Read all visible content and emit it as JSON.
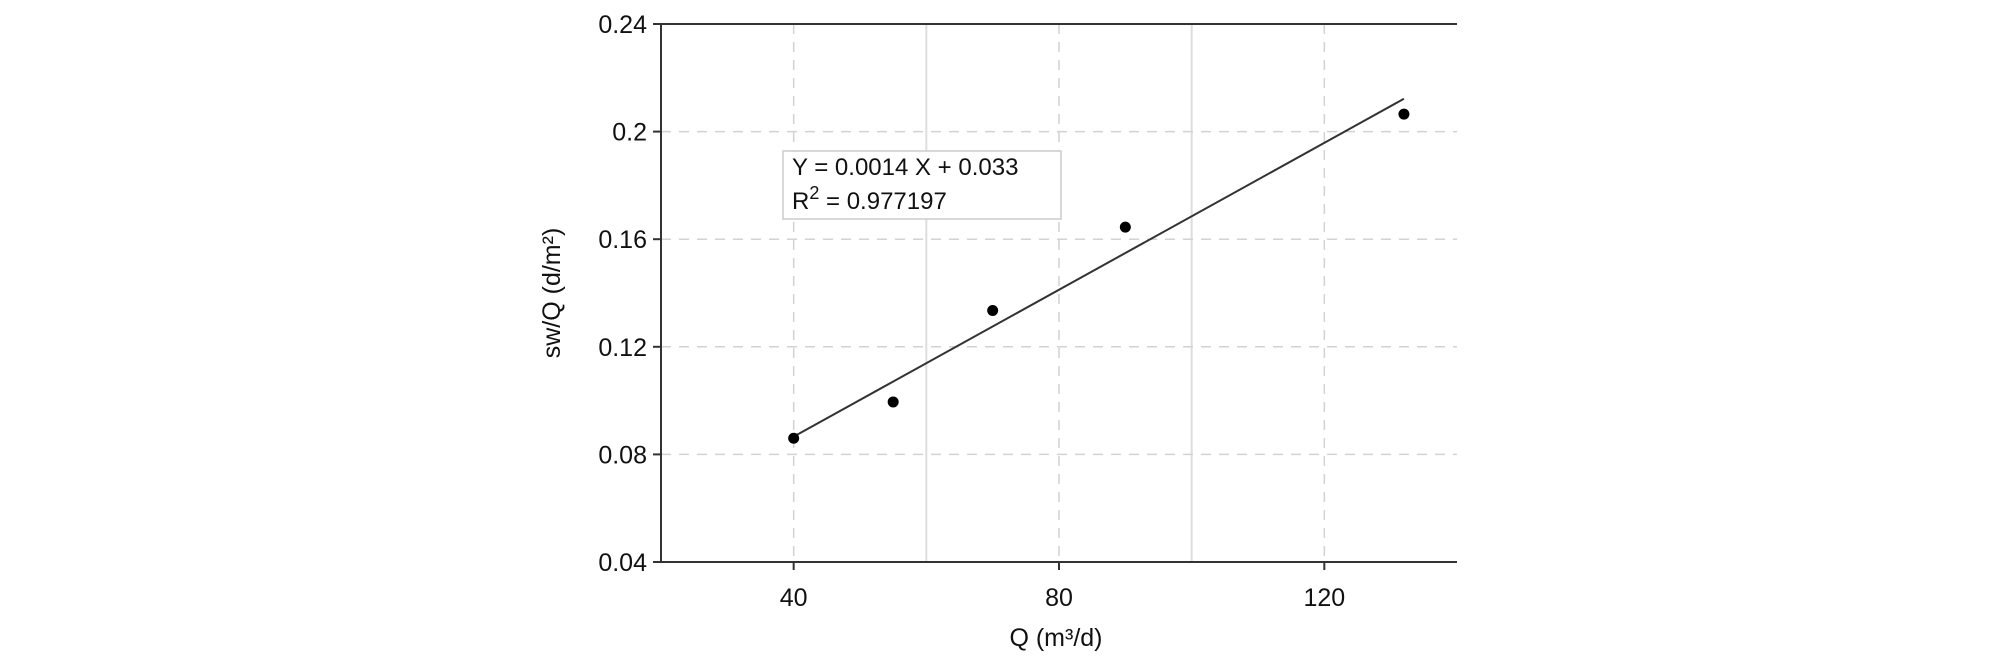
{
  "chart_data": {
    "type": "scatter",
    "xlabel": "Q (m³/d)",
    "ylabel": "sw/Q (d/m²)",
    "xlim": [
      20,
      140
    ],
    "ylim": [
      0.04,
      0.24
    ],
    "x_ticks": [
      40,
      80,
      120
    ],
    "x_tick_labels": [
      "40",
      "80",
      "120"
    ],
    "y_ticks": [
      0.04,
      0.08,
      0.12,
      0.16,
      0.2,
      0.24
    ],
    "y_tick_labels": [
      "0.04",
      "0.08",
      "0.12",
      "0.16",
      "0.2",
      "0.24"
    ],
    "grid": {
      "solid_x": [
        60,
        100
      ],
      "dashed_x": [
        40,
        80,
        120
      ],
      "dashed_y": [
        0.08,
        0.12,
        0.16,
        0.2
      ]
    },
    "series": [
      {
        "points": [
          {
            "x": 40,
            "y": 0.086
          },
          {
            "x": 55,
            "y": 0.0995
          },
          {
            "x": 70,
            "y": 0.1335
          },
          {
            "x": 90,
            "y": 0.1645
          },
          {
            "x": 132,
            "y": 0.2065
          }
        ],
        "marker_color": "#000000"
      }
    ],
    "fit_line": {
      "x": [
        40,
        132
      ],
      "y": [
        0.0866,
        0.2122
      ],
      "color": "#333333"
    },
    "annotation": {
      "line1": "Y = 0.0014 X + 0.033",
      "line2_prefix": "R",
      "line2_superscript": "2",
      "line2_suffix": " = 0.977197"
    }
  }
}
